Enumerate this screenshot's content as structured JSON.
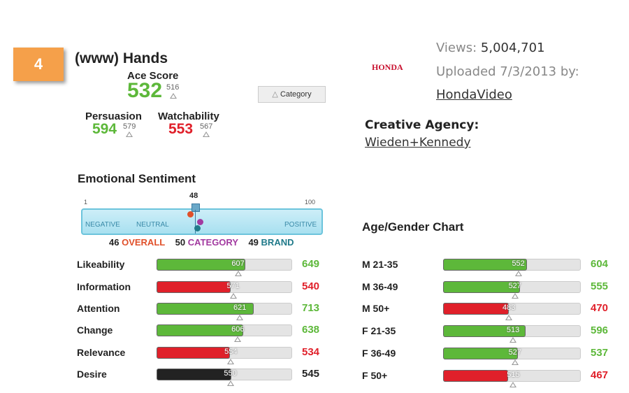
{
  "header": {
    "rank": "4",
    "title": "(www) Hands",
    "ace_label": "Ace Score",
    "ace_score": 532,
    "ace_norm": 516,
    "ace_color": "#5db83a",
    "category_button": "Category",
    "persuasion_label": "Persuasion",
    "persuasion": 594,
    "persuasion_norm": 579,
    "persuasion_color": "#5db83a",
    "watchability_label": "Watchability",
    "watchability": 553,
    "watchability_norm": 567,
    "watchability_color": "#e0202a"
  },
  "video": {
    "logo": "HONDA",
    "views_label": "Views:",
    "views": "5,004,701",
    "uploaded": "Uploaded 7/3/2013 by:",
    "uploader": "HondaVideo",
    "agency_label": "Creative Agency:",
    "agency": "Wieden+Kennedy"
  },
  "sentiment": {
    "title": "Emotional Sentiment",
    "min": 1,
    "max": 100,
    "value": 48,
    "negative": "NEGATIVE",
    "neutral": "NEUTRAL",
    "positive": "POSITIVE",
    "overall": 46,
    "overall_label": "OVERALL",
    "overall_color": "#e0502a",
    "category": 50,
    "category_label": "CATEGORY",
    "category_color": "#a23aa0",
    "brand": 49,
    "brand_label": "BRAND",
    "brand_color": "#207a8a"
  },
  "metrics": {
    "rows": [
      {
        "name": "Likeability",
        "norm": 607,
        "score": 649,
        "color": "#5db83a"
      },
      {
        "name": "Information",
        "norm": 571,
        "score": 540,
        "color": "#e0202a"
      },
      {
        "name": "Attention",
        "norm": 621,
        "score": 713,
        "color": "#5db83a"
      },
      {
        "name": "Change",
        "norm": 606,
        "score": 638,
        "color": "#5db83a"
      },
      {
        "name": "Relevance",
        "norm": 554,
        "score": 534,
        "color": "#e0202a"
      },
      {
        "name": "Desire",
        "norm": 550,
        "score": 545,
        "color": "#222222"
      }
    ]
  },
  "age_gender": {
    "title": "Age/Gender Chart",
    "rows": [
      {
        "name": "M 21-35",
        "norm": 552,
        "score": 604,
        "color": "#5db83a"
      },
      {
        "name": "M 36-49",
        "norm": 527,
        "score": 555,
        "color": "#5db83a"
      },
      {
        "name": "M 50+",
        "norm": 483,
        "score": 470,
        "color": "#e0202a"
      },
      {
        "name": "F 21-35",
        "norm": 513,
        "score": 596,
        "color": "#5db83a"
      },
      {
        "name": "F 36-49",
        "norm": 527,
        "score": 537,
        "color": "#5db83a"
      },
      {
        "name": "F 50+",
        "norm": 515,
        "score": 467,
        "color": "#e0202a"
      }
    ]
  }
}
